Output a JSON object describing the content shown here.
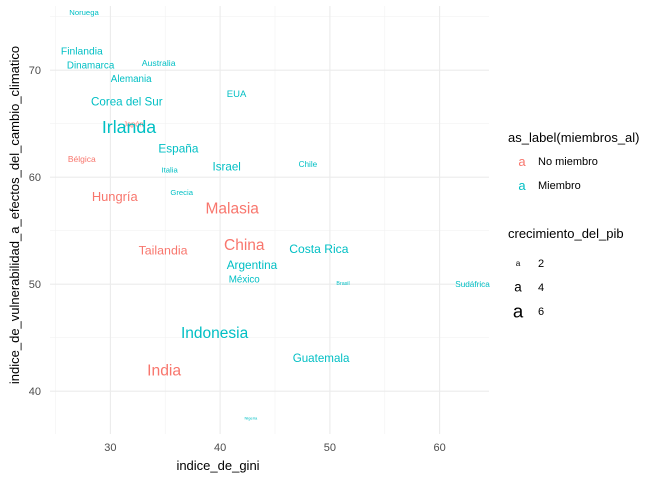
{
  "chart_data": {
    "type": "scatter",
    "title": "",
    "xlabel": "indice_de_gini",
    "ylabel": "indice_de_vulnerabilidad_a_efectos_del_cambio_climatico",
    "xlim": [
      24.5,
      64.5
    ],
    "ylim": [
      36,
      76
    ],
    "x_ticks": [
      30,
      40,
      50,
      60
    ],
    "y_ticks": [
      40,
      50,
      60,
      70
    ],
    "grid": true,
    "legend_position": "right",
    "legend_color": {
      "title": "as_label(miembros_al)",
      "items": [
        {
          "key": "no",
          "symbol": "a",
          "label": "No miembro",
          "color": "#F8766D"
        },
        {
          "key": "si",
          "symbol": "a",
          "label": "Miembro",
          "color": "#00BFC4"
        }
      ]
    },
    "legend_size": {
      "title": "crecimiento_del_pib",
      "items": [
        {
          "symbol": "a",
          "label": "2",
          "value": 2
        },
        {
          "symbol": "a",
          "label": "4",
          "value": 4
        },
        {
          "symbol": "a",
          "label": "6",
          "value": 6
        }
      ]
    },
    "points": [
      {
        "label": "Noruega",
        "x": 27.6,
        "y": 75.4,
        "size": 1.8,
        "group": "si"
      },
      {
        "label": "Finlandia",
        "x": 27.4,
        "y": 71.8,
        "size": 2.8,
        "group": "si"
      },
      {
        "label": "Dinamarca",
        "x": 28.2,
        "y": 70.5,
        "size": 2.6,
        "group": "si"
      },
      {
        "label": "Australia",
        "x": 34.4,
        "y": 70.7,
        "size": 2.2,
        "group": "si"
      },
      {
        "label": "Alemania",
        "x": 31.9,
        "y": 69.2,
        "size": 2.6,
        "group": "si"
      },
      {
        "label": "EUA",
        "x": 41.5,
        "y": 67.8,
        "size": 2.5,
        "group": "si"
      },
      {
        "label": "Corea del Sur",
        "x": 31.5,
        "y": 67.1,
        "size": 3.3,
        "group": "si"
      },
      {
        "label": "Japón",
        "x": 32.1,
        "y": 65.0,
        "size": 1.7,
        "group": "no"
      },
      {
        "label": "Irlanda",
        "x": 31.7,
        "y": 64.7,
        "size": 5.7,
        "group": "si"
      },
      {
        "label": "España",
        "x": 36.2,
        "y": 62.7,
        "size": 3.4,
        "group": "si"
      },
      {
        "label": "Bélgica",
        "x": 27.4,
        "y": 61.7,
        "size": 2.1,
        "group": "no"
      },
      {
        "label": "Israel",
        "x": 40.6,
        "y": 61.0,
        "size": 3.3,
        "group": "si"
      },
      {
        "label": "Chile",
        "x": 48.0,
        "y": 61.2,
        "size": 2.0,
        "group": "si"
      },
      {
        "label": "Italia",
        "x": 35.4,
        "y": 60.7,
        "size": 1.8,
        "group": "si"
      },
      {
        "label": "Grecia",
        "x": 36.5,
        "y": 58.6,
        "size": 1.8,
        "group": "si"
      },
      {
        "label": "Hungría",
        "x": 30.4,
        "y": 58.2,
        "size": 3.8,
        "group": "no"
      },
      {
        "label": "Malasia",
        "x": 41.1,
        "y": 57.1,
        "size": 4.8,
        "group": "no"
      },
      {
        "label": "China",
        "x": 42.2,
        "y": 53.7,
        "size": 4.8,
        "group": "no"
      },
      {
        "label": "Tailandia",
        "x": 34.8,
        "y": 53.2,
        "size": 3.6,
        "group": "no"
      },
      {
        "label": "Costa Rica",
        "x": 49.0,
        "y": 53.3,
        "size": 3.5,
        "group": "si"
      },
      {
        "label": "Argentina",
        "x": 42.9,
        "y": 51.8,
        "size": 3.4,
        "group": "si"
      },
      {
        "label": "México",
        "x": 42.2,
        "y": 50.5,
        "size": 2.6,
        "group": "si"
      },
      {
        "label": "Brasil",
        "x": 51.2,
        "y": 50.1,
        "size": 0.9,
        "group": "si"
      },
      {
        "label": "Sudáfrica",
        "x": 63.0,
        "y": 50.0,
        "size": 2.0,
        "group": "si"
      },
      {
        "label": "Indonesia",
        "x": 39.5,
        "y": 45.5,
        "size": 4.8,
        "group": "si"
      },
      {
        "label": "Guatemala",
        "x": 49.2,
        "y": 43.1,
        "size": 3.3,
        "group": "si"
      },
      {
        "label": "India",
        "x": 34.9,
        "y": 42.0,
        "size": 4.9,
        "group": "no"
      },
      {
        "label": "Nigeria",
        "x": 42.8,
        "y": 37.5,
        "size": 0.4,
        "group": "si"
      }
    ]
  }
}
